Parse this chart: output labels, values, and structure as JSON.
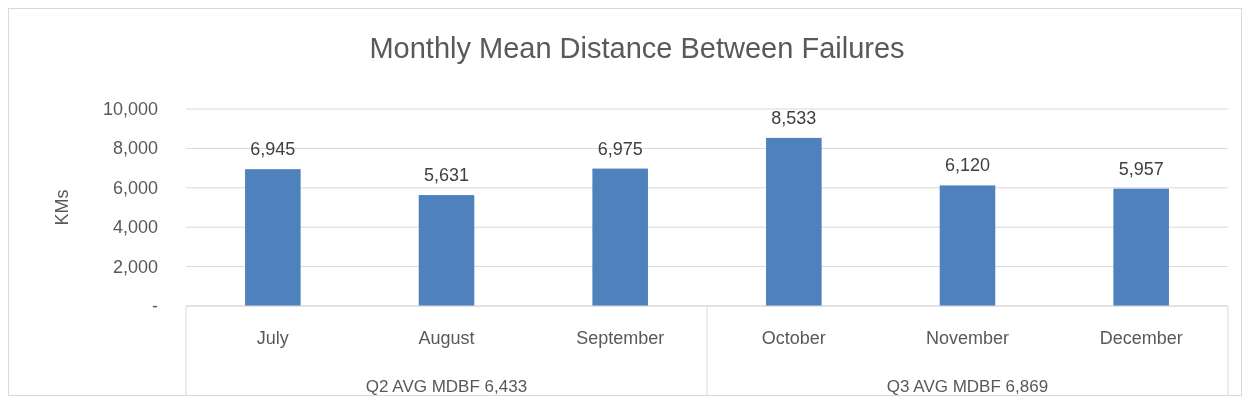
{
  "chart_data": {
    "type": "bar",
    "title": "Monthly Mean Distance Between Failures",
    "ylabel": "KMs",
    "categories": [
      "July",
      "August",
      "September",
      "October",
      "November",
      "December"
    ],
    "values": [
      6945,
      5631,
      6975,
      8533,
      6120,
      5957
    ],
    "color": "#4f81bd",
    "ylim": [
      0,
      10000
    ],
    "yticks": [
      {
        "value": 0,
        "label": "-"
      },
      {
        "value": 2000,
        "label": "2,000"
      },
      {
        "value": 4000,
        "label": "4,000"
      },
      {
        "value": 6000,
        "label": "6,000"
      },
      {
        "value": 8000,
        "label": "8,000"
      },
      {
        "value": 10000,
        "label": "10,000"
      }
    ],
    "grid": "y",
    "value_labels": [
      "6,945",
      "5,631",
      "6,975",
      "8,533",
      "6,120",
      "5,957"
    ],
    "annotations": [
      "Q2 AVG MDBF 6,433",
      "Q3 AVG MDBF 6,869"
    ]
  }
}
